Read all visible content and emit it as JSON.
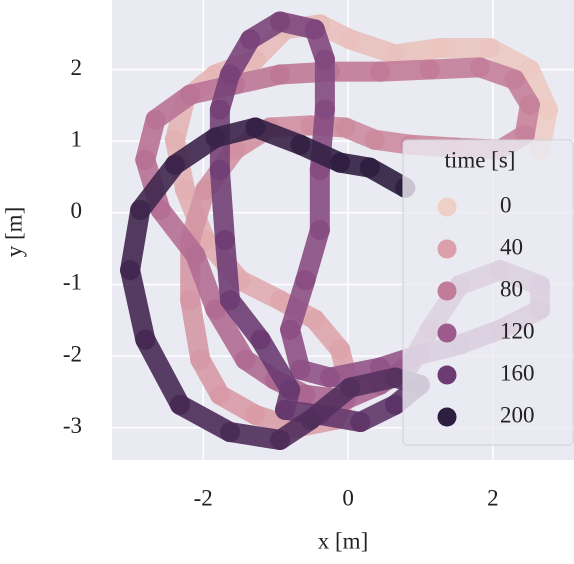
{
  "chart_data": {
    "type": "scatter",
    "xlabel": "x [m]",
    "ylabel": "y [m]",
    "x": [
      2.65,
      2.76,
      2.51,
      1.96,
      1.27,
      0.65,
      0.03,
      -0.39,
      -0.87,
      -1.28,
      -1.83,
      -2.25,
      -2.39,
      -2.25,
      -1.97,
      -1.49,
      -0.94,
      -0.46,
      -0.11,
      0.03,
      -0.18,
      -0.73,
      -1.28,
      -1.77,
      -2.04,
      -2.18,
      -2.18,
      -1.97,
      -1.56,
      -1.08,
      -0.52,
      -0.04,
      0.37,
      0.86,
      1.48,
      2.1,
      2.44,
      2.51,
      2.3,
      1.82,
      1.13,
      0.44,
      -0.25,
      -0.94,
      -1.56,
      -2.18,
      -2.66,
      -2.8,
      -2.59,
      -2.11,
      -1.83,
      -1.42,
      -1.01,
      -0.59,
      -0.04,
      0.44,
      0.86,
      1.13,
      1.54,
      2.1,
      2.65,
      2.65,
      2.1,
      1.54,
      0.99,
      0.44,
      -0.25,
      -0.66,
      -0.8,
      -0.59,
      -0.39,
      -0.39,
      -0.32,
      -0.32,
      -0.46,
      -0.94,
      -1.35,
      -1.63,
      -1.77,
      -1.77,
      -1.7,
      -1.63,
      -1.21,
      -0.8,
      -0.87,
      -0.39,
      0.17,
      0.65,
      0.99,
      0.65,
      0.03,
      -0.52,
      -0.94,
      -1.63,
      -2.32,
      -2.8,
      -3.01,
      -2.87,
      -2.39,
      -1.83,
      -1.28,
      -0.66,
      -0.11,
      0.3,
      0.79
    ],
    "y": [
      0.88,
      1.44,
      2.0,
      2.3,
      2.3,
      2.21,
      2.42,
      2.63,
      2.56,
      2.14,
      1.93,
      1.58,
      1.02,
      0.32,
      -0.38,
      -0.94,
      -1.22,
      -1.49,
      -1.91,
      -2.47,
      -2.89,
      -3.0,
      -2.82,
      -2.54,
      -2.05,
      -1.22,
      -0.38,
      0.32,
      0.88,
      1.19,
      1.22,
      1.19,
      1.02,
      0.95,
      0.91,
      0.88,
      1.09,
      1.51,
      1.86,
      2.03,
      2.0,
      1.97,
      1.97,
      1.93,
      1.79,
      1.65,
      1.3,
      0.74,
      0.04,
      -0.59,
      -1.35,
      -2.05,
      -2.33,
      -2.54,
      -2.61,
      -2.4,
      -2.12,
      -1.63,
      -1.01,
      -0.8,
      -1.01,
      -1.35,
      -1.63,
      -1.84,
      -1.98,
      -2.16,
      -2.3,
      -2.19,
      -1.63,
      -0.94,
      -0.24,
      0.6,
      1.44,
      2.14,
      2.56,
      2.67,
      2.42,
      1.93,
      1.44,
      0.6,
      -0.38,
      -1.22,
      -1.77,
      -2.47,
      -2.75,
      -2.82,
      -2.92,
      -2.68,
      -2.4,
      -2.3,
      -2.44,
      -2.89,
      -3.17,
      -3.06,
      -2.68,
      -1.77,
      -0.8,
      0.04,
      0.67,
      1.05,
      1.19,
      0.95,
      0.7,
      0.63,
      0.35
    ],
    "hue": [
      0,
      2,
      4,
      6,
      8,
      10,
      12,
      13,
      15,
      17,
      19,
      21,
      23,
      25,
      27,
      29,
      31,
      33,
      35,
      37,
      38,
      40,
      42,
      44,
      46,
      48,
      50,
      52,
      54,
      56,
      58,
      60,
      62,
      63,
      65,
      67,
      69,
      71,
      73,
      75,
      77,
      79,
      81,
      83,
      85,
      87,
      88,
      90,
      92,
      94,
      96,
      98,
      100,
      102,
      104,
      106,
      108,
      110,
      112,
      113,
      115,
      117,
      119,
      121,
      123,
      125,
      127,
      129,
      131,
      133,
      135,
      137,
      138,
      140,
      142,
      144,
      146,
      148,
      150,
      152,
      154,
      156,
      158,
      160,
      162,
      163,
      165,
      167,
      169,
      171,
      173,
      175,
      177,
      179,
      181,
      183,
      185,
      187,
      188,
      190,
      192,
      194,
      196,
      198,
      200
    ],
    "legend": {
      "title": "time [s]",
      "values": [
        0,
        40,
        80,
        120,
        160,
        200
      ],
      "colors": [
        "#efd0c6",
        "#dba0a9",
        "#c27b98",
        "#9c5a8d",
        "#6b3b72",
        "#2e1e3f"
      ],
      "loc": "lower right"
    },
    "xlim": [
      -3.26,
      3.12
    ],
    "ylim": [
      -3.45,
      2.97
    ],
    "xticks": [
      -2,
      0,
      2
    ],
    "yticks": [
      -3,
      -2,
      -1,
      0,
      1,
      2
    ],
    "grid": true
  }
}
